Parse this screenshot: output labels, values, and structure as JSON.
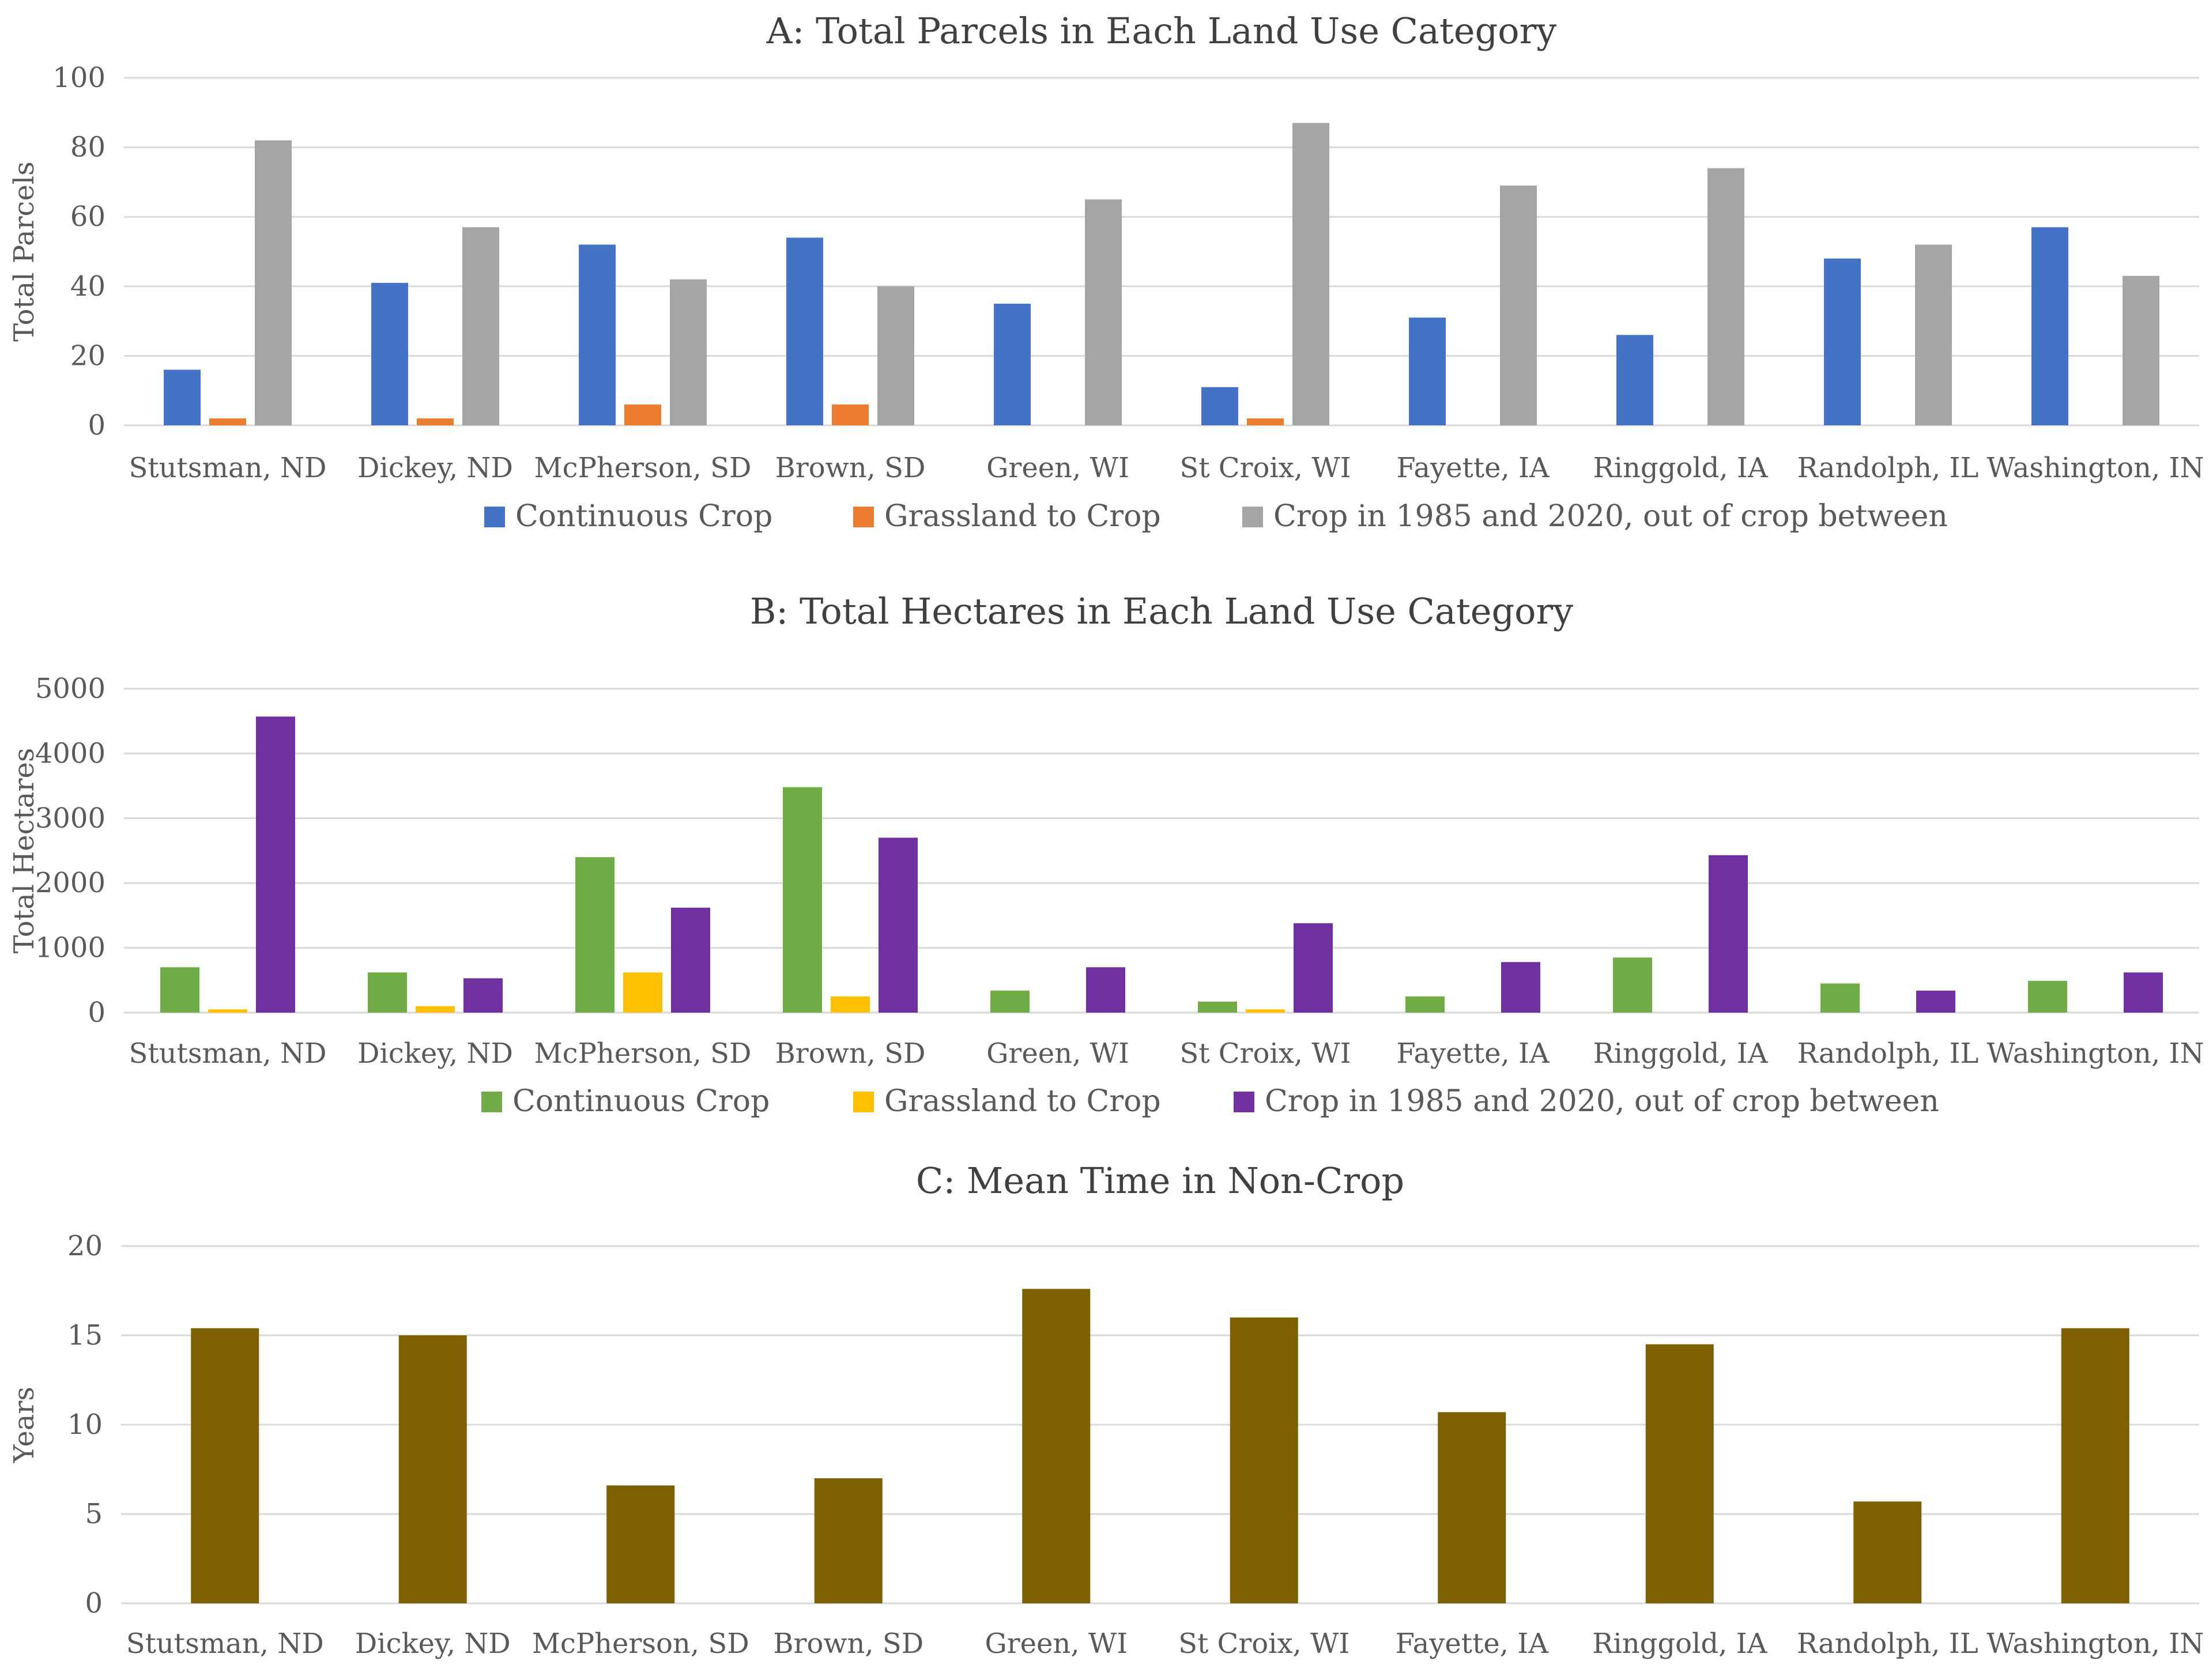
{
  "figure": {
    "chart_data": [
      {
        "type": "bar",
        "title": "A: Total Parcels in Each Land Use Category",
        "xlabel": "",
        "ylabel": "Total Parcels",
        "ylim": [
          0,
          100
        ],
        "yticks": [
          0,
          20,
          40,
          60,
          80,
          100
        ],
        "grid": true,
        "legend_position": "bottom",
        "categories": [
          "Stutsman, ND",
          "Dickey, ND",
          "McPherson, SD",
          "Brown, SD",
          "Green, WI",
          "St Croix, WI",
          "Fayette, IA",
          "Ringgold, IA",
          "Randolph, IL",
          "Washington, IN"
        ],
        "series": [
          {
            "name": "Continuous Crop",
            "color": "#4472C4",
            "values": [
              16,
              41,
              52,
              54,
              35,
              11,
              31,
              26,
              48,
              57
            ]
          },
          {
            "name": "Grassland to Crop",
            "color": "#ED7D31",
            "values": [
              2,
              2,
              6,
              6,
              0,
              2,
              0,
              0,
              0,
              0
            ]
          },
          {
            "name": "Crop in 1985 and 2020, out of crop between",
            "color": "#A5A5A5",
            "values": [
              82,
              57,
              42,
              40,
              65,
              87,
              69,
              74,
              52,
              43
            ]
          }
        ]
      },
      {
        "type": "bar",
        "title": "B: Total Hectares in Each Land Use Category",
        "xlabel": "",
        "ylabel": "Total Hectares",
        "ylim": [
          0,
          5000
        ],
        "yticks": [
          0,
          1000,
          2000,
          3000,
          4000,
          5000
        ],
        "grid": true,
        "legend_position": "bottom",
        "categories": [
          "Stutsman, ND",
          "Dickey, ND",
          "McPherson, SD",
          "Brown, SD",
          "Green, WI",
          "St Croix, WI",
          "Fayette, IA",
          "Ringgold, IA",
          "Randolph, IL",
          "Washington, IN"
        ],
        "series": [
          {
            "name": "Continuous Crop",
            "color": "#70AD47",
            "values": [
              700,
              620,
              2400,
              3480,
              340,
              170,
              250,
              850,
              450,
              490
            ]
          },
          {
            "name": "Grassland to Crop",
            "color": "#FFC000",
            "values": [
              50,
              100,
              620,
              250,
              0,
              50,
              0,
              0,
              0,
              0
            ]
          },
          {
            "name": "Crop in 1985 and 2020, out of crop between",
            "color": "#7030A0",
            "values": [
              4570,
              530,
              1620,
              2700,
              700,
              1380,
              780,
              2430,
              340,
              620
            ]
          }
        ]
      },
      {
        "type": "bar",
        "title": "C: Mean Time in Non-Crop",
        "xlabel": "",
        "ylabel": "Years",
        "ylim": [
          0,
          20
        ],
        "yticks": [
          0,
          5,
          10,
          15,
          20
        ],
        "grid": true,
        "legend_position": "none",
        "categories": [
          "Stutsman, ND",
          "Dickey, ND",
          "McPherson, SD",
          "Brown, SD",
          "Green, WI",
          "St Croix, WI",
          "Fayette, IA",
          "Ringgold, IA",
          "Randolph, IL",
          "Washington, IN"
        ],
        "series": [
          {
            "name": "Mean Time in Non-Crop",
            "color": "#7F6000",
            "values": [
              15.4,
              15.0,
              6.6,
              7.0,
              17.6,
              16.0,
              10.7,
              14.5,
              5.7,
              15.4
            ]
          }
        ]
      }
    ]
  }
}
